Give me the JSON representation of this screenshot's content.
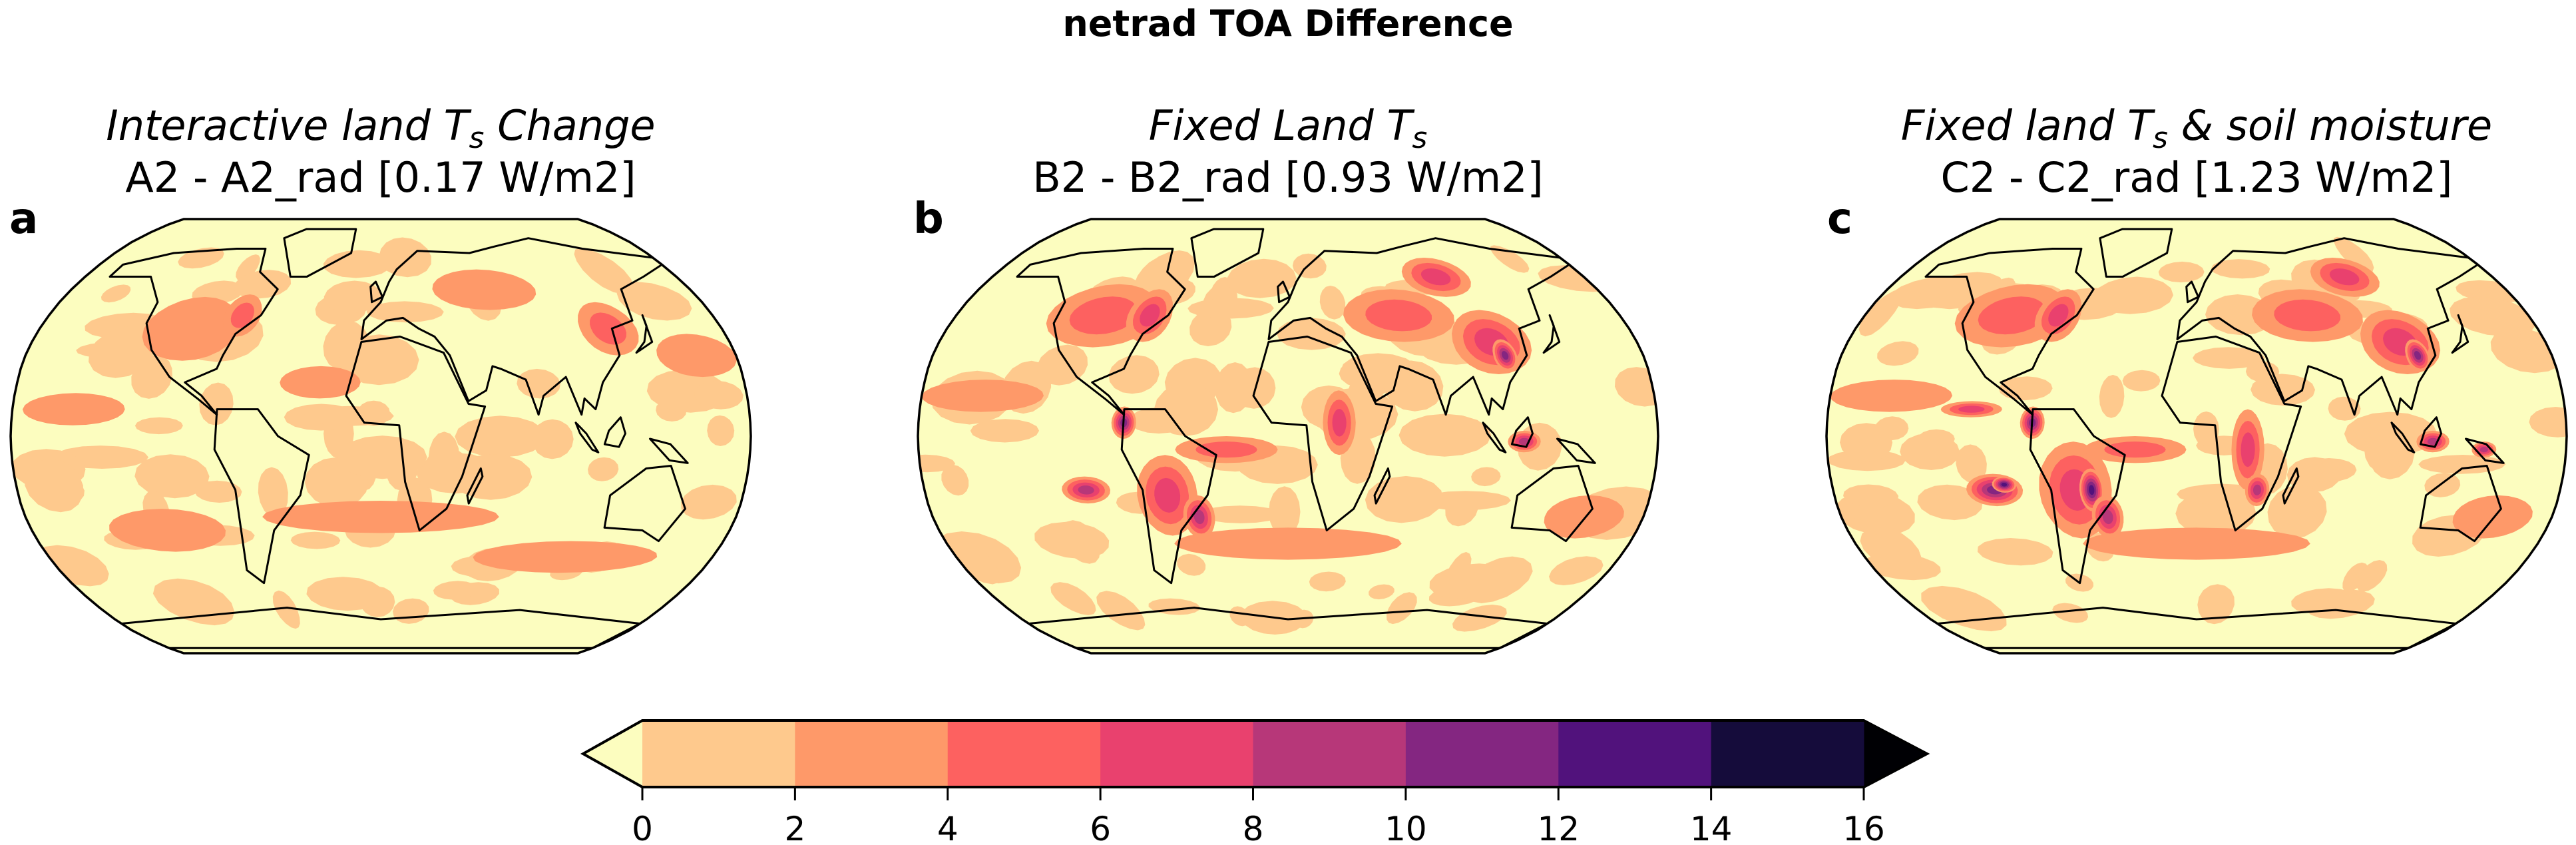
{
  "title": "netrad TOA Difference",
  "panels": [
    {
      "letter": "a",
      "title_pre": "Interactive land ",
      "title_sym": "T",
      "title_sub": "s",
      "title_post": " Change",
      "subtitle": "A2 - A2_rad [0.17 W/m2]"
    },
    {
      "letter": "b",
      "title_pre": "Fixed Land ",
      "title_sym": "T",
      "title_sub": "s",
      "title_post": "",
      "subtitle": "B2 - B2_rad [0.93 W/m2]"
    },
    {
      "letter": "c",
      "title_pre": "Fixed land ",
      "title_sym": "T",
      "title_sub": "s",
      "title_post": " & soil moisture",
      "subtitle": "C2 - C2_rad [1.23 W/m2]"
    }
  ],
  "colorbar": {
    "ticks": [
      "0",
      "2",
      "4",
      "6",
      "8",
      "10",
      "12",
      "14",
      "16"
    ],
    "colors": [
      "#fec98d",
      "#fe9969",
      "#fd6160",
      "#e9416e",
      "#b73779",
      "#842681",
      "#51127c",
      "#150c3b"
    ],
    "extend_min_color": "#fcfdbf",
    "extend_max_color": "#000004",
    "extend": "both",
    "colormap": "magma_r"
  }
}
